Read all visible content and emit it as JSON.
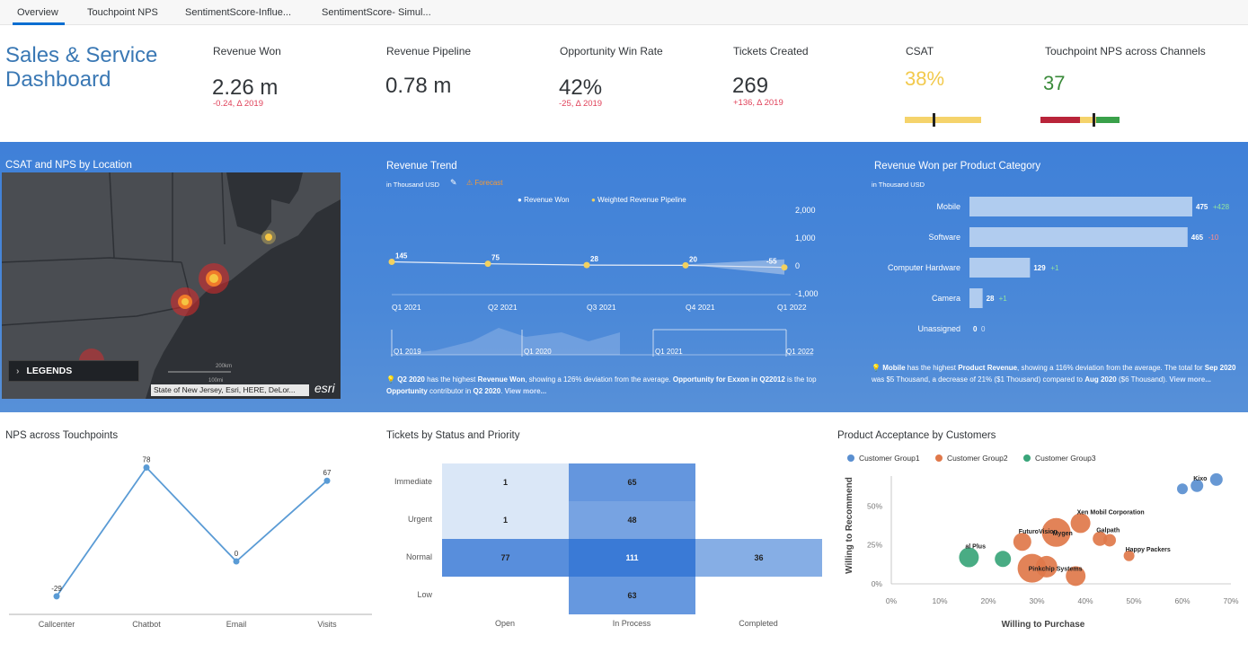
{
  "tabs": [
    {
      "label": "Overview",
      "active": true
    },
    {
      "label": "Touchpoint NPS"
    },
    {
      "label": "SentimentScore-Influe..."
    },
    {
      "label": "SentimentScore- Simul..."
    }
  ],
  "header": {
    "title_line1": "Sales & Service",
    "title_line2": "Dashboard",
    "kpis": [
      {
        "label": "Revenue Won",
        "value": "2.26 m",
        "delta": "-0.24, Δ 2019"
      },
      {
        "label": "Revenue Pipeline",
        "value": "0.78 m",
        "delta": ""
      },
      {
        "label": "Opportunity Win Rate",
        "value": "42%",
        "delta": "-25, Δ 2019"
      },
      {
        "label": "Tickets Created",
        "value": "269",
        "delta": "+136, Δ 2019"
      }
    ],
    "csat": {
      "label": "CSAT",
      "value": "38%",
      "color": "#f2c94c"
    },
    "nps": {
      "label": "Touchpoint NPS across Channels",
      "value": "37",
      "color": "#3a8a3a"
    }
  },
  "map_panel": {
    "title": "CSAT and NPS by Location",
    "legends_label": "LEGENDS",
    "attribution": "State of New Jersey, Esri, HERE, DeLor...",
    "esri": "esri",
    "scale_top": "200km",
    "scale_bottom": "100mi"
  },
  "revenue_trend": {
    "title": "Revenue Trend",
    "subtitle": "in Thousand USD",
    "forecast_label": "Forecast",
    "legend": [
      "Revenue Won",
      "Weighted Revenue Pipeline"
    ],
    "note_parts": {
      "p1": "Q2 2020",
      "p2": " has the highest ",
      "p3": "Revenue Won",
      "p4": ", showing a 126% deviation from the average. ",
      "p5": "Opportunity for Exxon in Q22012",
      "p6": " is the top ",
      "p7": "Opportunity",
      "p8": " contributor in ",
      "p9": "Q2 2020",
      "p10": ". ",
      "more": "View more..."
    }
  },
  "product_category": {
    "title": "Revenue Won per Product Category",
    "subtitle": "in Thousand USD",
    "note_parts": {
      "p1": "Mobile",
      "p2": " has the highest ",
      "p3": "Product Revenue",
      "p4": ", showing a 116% deviation from the average. The total for ",
      "p5": "Sep 2020",
      "p6": " was $5 Thousand, a decrease of 21% ($1 Thousand) compared to ",
      "p7": "Aug 2020",
      "p8": " ($6 Thousand).",
      "more": "View more..."
    }
  },
  "nps_section": {
    "title": "NPS across Touchpoints"
  },
  "tickets_section": {
    "title": "Tickets by Status and Priority"
  },
  "acceptance_section": {
    "title": "Product Acceptance by Customers"
  },
  "chart_data": [
    {
      "type": "line",
      "id": "revenue_trend",
      "x": [
        "Q1 2021",
        "Q2 2021",
        "Q3 2021",
        "Q4 2021",
        "Q1 2022"
      ],
      "series": [
        {
          "name": "Revenue Won",
          "values": [
            145,
            75,
            28,
            20,
            -55
          ]
        }
      ],
      "yticks": [
        "2,000",
        "1,000",
        "0",
        "-1,000"
      ],
      "ylim": [
        -1000,
        2000
      ],
      "navigator_labels": [
        "Q1 2019",
        "Q1 2020",
        "Q1 2021",
        "Q1 2022"
      ],
      "point_color": "#f2d15f"
    },
    {
      "type": "bar",
      "id": "revenue_by_category",
      "categories": [
        "Mobile",
        "Software",
        "Computer Hardware",
        "Camera",
        "Unassigned"
      ],
      "values": [
        475,
        465,
        129,
        28,
        0
      ],
      "delta_labels": [
        "+428",
        "-10",
        "+1",
        "+1",
        "0"
      ],
      "xlim": [
        0,
        500
      ]
    },
    {
      "type": "line",
      "id": "nps_touchpoints",
      "categories": [
        "Callcenter",
        "Chatbot",
        "Email",
        "Visits"
      ],
      "values": [
        -29,
        78,
        0,
        67
      ],
      "ylim": [
        -40,
        90
      ],
      "color": "#5a9bd5"
    },
    {
      "type": "heatmap",
      "id": "tickets",
      "rows": [
        "Immediate",
        "Urgent",
        "Normal",
        "Low"
      ],
      "cols": [
        "Open",
        "In Process",
        "Completed"
      ],
      "values": [
        [
          1,
          65,
          null
        ],
        [
          1,
          48,
          null
        ],
        [
          77,
          111,
          36
        ],
        [
          null,
          63,
          null
        ]
      ]
    },
    {
      "type": "scatter",
      "id": "acceptance",
      "xlabel": "Willing to Purchase",
      "ylabel": "Willing to Recommend",
      "xticks": [
        "0%",
        "10%",
        "20%",
        "30%",
        "40%",
        "50%",
        "60%",
        "70%"
      ],
      "yticks": [
        "0%",
        "25%",
        "50%"
      ],
      "xlim": [
        0,
        70
      ],
      "ylim": [
        0,
        75
      ],
      "series": [
        {
          "name": "Customer Group1",
          "color": "#5a8fd0",
          "points": [
            {
              "x": 60,
              "y": 61,
              "size": 6,
              "label": ""
            },
            {
              "x": 63,
              "y": 63,
              "size": 7,
              "label": "Kixo"
            },
            {
              "x": 67,
              "y": 67,
              "size": 7,
              "label": ""
            }
          ]
        },
        {
          "name": "Customer Group2",
          "color": "#e0784a",
          "points": [
            {
              "x": 34,
              "y": 33,
              "size": 16,
              "label": "Mygen"
            },
            {
              "x": 39,
              "y": 39,
              "size": 11,
              "label": "Xen Mobil Corporation"
            },
            {
              "x": 27,
              "y": 27,
              "size": 10,
              "label": "FuturoVision"
            },
            {
              "x": 43,
              "y": 29,
              "size": 8,
              "label": "Galpath"
            },
            {
              "x": 45,
              "y": 28,
              "size": 7,
              "label": ""
            },
            {
              "x": 49,
              "y": 18,
              "size": 6,
              "label": "Happy Packers"
            },
            {
              "x": 29,
              "y": 10,
              "size": 16,
              "label": "Pinkchip Systems"
            },
            {
              "x": 32,
              "y": 11,
              "size": 12,
              "label": ""
            },
            {
              "x": 38,
              "y": 5,
              "size": 11,
              "label": ""
            }
          ]
        },
        {
          "name": "Customer Group3",
          "color": "#3aa57a",
          "points": [
            {
              "x": 16,
              "y": 17,
              "size": 11,
              "label": "al Plus"
            },
            {
              "x": 23,
              "y": 16,
              "size": 9,
              "label": ""
            }
          ]
        }
      ]
    }
  ]
}
